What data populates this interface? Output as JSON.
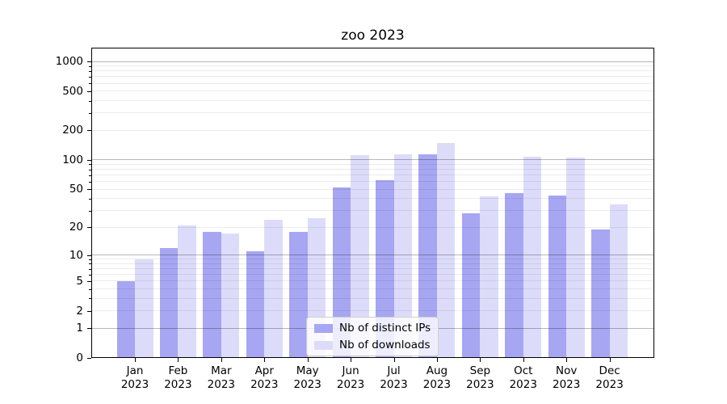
{
  "chart_data": {
    "type": "bar",
    "title": "zoo 2023",
    "categories": [
      "Jan",
      "Feb",
      "Mar",
      "Apr",
      "May",
      "Jun",
      "Jul",
      "Aug",
      "Sep",
      "Oct",
      "Nov",
      "Dec"
    ],
    "year_label": "2023",
    "series": [
      {
        "name": "Nb of distinct IPs",
        "color": "#a6a6f2",
        "values": [
          5,
          12,
          18,
          11,
          18,
          52,
          62,
          113,
          28,
          46,
          43,
          19
        ]
      },
      {
        "name": "Nb of downloads",
        "color": "#dcdcfa",
        "values": [
          9,
          21,
          17,
          24,
          25,
          112,
          114,
          150,
          42,
          108,
          105,
          35
        ]
      }
    ],
    "y_axis": {
      "scale": "log10(1+value)",
      "tick_labels": [
        "0",
        "1",
        "2",
        "5",
        "10",
        "20",
        "50",
        "100",
        "200",
        "500",
        "1000"
      ],
      "tick_values": [
        0,
        1,
        2,
        5,
        10,
        20,
        50,
        100,
        200,
        500,
        1000
      ],
      "major_grid_values": [
        1,
        10,
        100,
        1000
      ],
      "ylim": [
        0,
        1380
      ],
      "grid": true
    },
    "legend": {
      "location": "lower-center",
      "entries": [
        "Nb of distinct IPs",
        "Nb of downloads"
      ]
    }
  }
}
